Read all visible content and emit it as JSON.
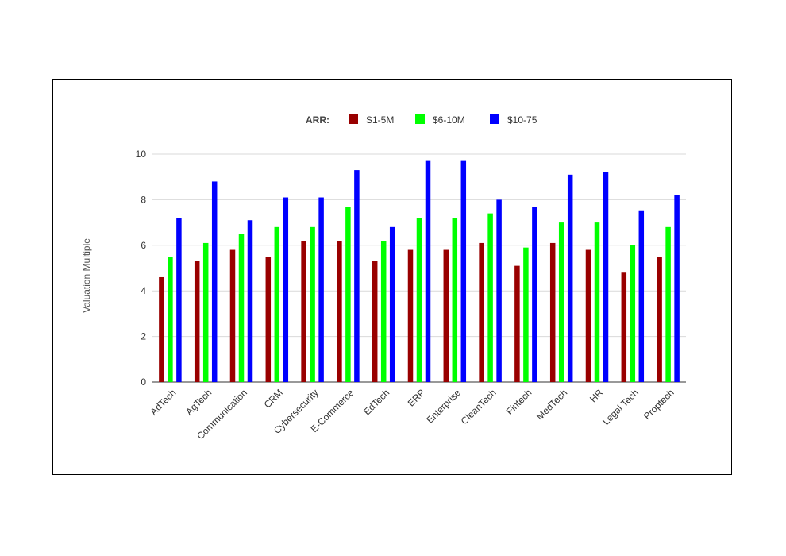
{
  "chart_data": {
    "type": "bar",
    "legend_title": "ARR:",
    "legend_position": "top",
    "ylabel": "Valuation Multiple",
    "ylim": [
      0,
      10
    ],
    "yticks": [
      0,
      2,
      4,
      6,
      8,
      10
    ],
    "grid": true,
    "categories": [
      "AdTech",
      "AgTech",
      "Communication",
      "CRM",
      "Cybersecurity",
      "E-Commerce",
      "EdTech",
      "ERP",
      "Enterprise",
      "CleanTech",
      "Fintech",
      "MedTech",
      "HR",
      "Legal Tech",
      "Proptech"
    ],
    "series": [
      {
        "name": "S1-5M",
        "color": "#990000",
        "values": [
          4.6,
          5.3,
          5.8,
          5.5,
          6.2,
          6.2,
          5.3,
          5.8,
          5.8,
          6.1,
          5.1,
          6.1,
          5.8,
          4.8,
          5.5
        ]
      },
      {
        "name": "$6-10M",
        "color": "#00ff00",
        "values": [
          5.5,
          6.1,
          6.5,
          6.8,
          6.8,
          7.7,
          6.2,
          7.2,
          7.2,
          7.4,
          5.9,
          7.0,
          7.0,
          6.0,
          6.8
        ]
      },
      {
        "name": "$10-75",
        "color": "#0000ff",
        "values": [
          7.2,
          8.8,
          7.1,
          8.1,
          8.1,
          9.3,
          6.8,
          9.7,
          9.7,
          8.0,
          7.7,
          9.1,
          9.2,
          7.5,
          8.2
        ]
      }
    ]
  }
}
